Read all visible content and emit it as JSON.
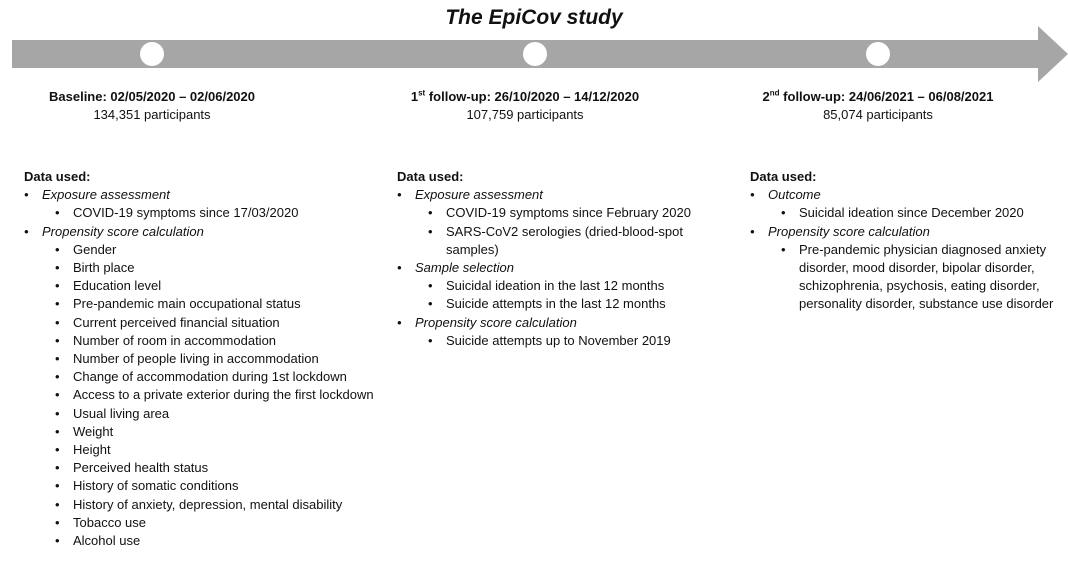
{
  "title": "The EpiCov study",
  "timepoints": [
    {
      "heading_parts": [
        "Baseline: 02/05/2020 – 02/06/2020"
      ],
      "participants": "134,351 participants",
      "data_heading": "Data used:",
      "groups": [
        {
          "title": "Exposure assessment",
          "items": [
            "COVID-19 symptoms since 17/03/2020"
          ]
        },
        {
          "title": "Propensity score calculation",
          "items": [
            "Gender",
            "Birth place",
            "Education level",
            "Pre-pandemic main occupational status",
            "Current perceived financial situation",
            "Number of room in accommodation",
            "Number of people living in accommodation",
            "Change of accommodation during 1st lockdown",
            "Access to a private exterior during the first lockdown",
            "Usual living area",
            "Weight",
            "Height",
            "Perceived health status",
            "History of somatic conditions",
            "History of anxiety, depression, mental disability",
            "Tobacco use",
            "Alcohol use"
          ]
        }
      ]
    },
    {
      "heading_parts": [
        "1",
        "st",
        " follow-up: 26/10/2020 – 14/12/2020"
      ],
      "participants": "107,759 participants",
      "data_heading": "Data used:",
      "groups": [
        {
          "title": "Exposure assessment",
          "items": [
            "COVID-19 symptoms since February 2020",
            "SARS-CoV2 serologies (dried-blood-spot samples)"
          ]
        },
        {
          "title": "Sample selection",
          "items": [
            "Suicidal ideation in the last 12 months",
            "Suicide attempts in the last 12 months"
          ]
        },
        {
          "title": "Propensity score calculation",
          "items": [
            "Suicide attempts up to November 2019"
          ]
        }
      ]
    },
    {
      "heading_parts": [
        "2",
        "nd",
        " follow-up: 24/06/2021 – 06/08/2021"
      ],
      "participants": "85,074 participants",
      "data_heading": "Data used:",
      "groups": [
        {
          "title": "Outcome",
          "items": [
            "Suicidal ideation since December 2020"
          ]
        },
        {
          "title": "Propensity score calculation",
          "items": [
            "Pre-pandemic physician diagnosed anxiety disorder, mood disorder, bipolar disorder, schizophrenia, psychosis, eating disorder, personality disorder, substance use disorder"
          ]
        }
      ]
    }
  ]
}
